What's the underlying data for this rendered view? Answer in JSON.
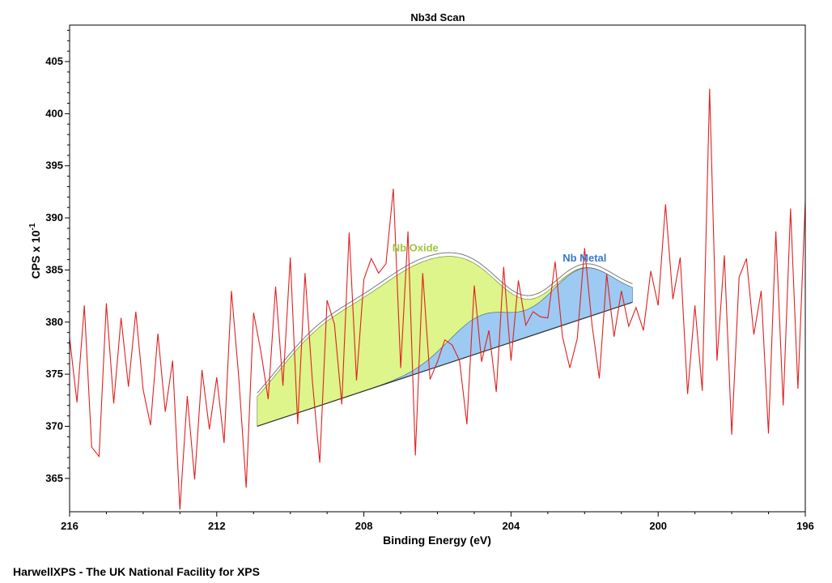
{
  "footer_text": "HarwellXPS - The UK National Facility for XPS",
  "colors": {
    "raw": "#e02020",
    "oxide_fill": "#ddf58a",
    "metal_fill": "#9ccaf2",
    "oxide_label": "#9cc63a",
    "metal_label": "#3a78c8",
    "envelope": "#7a7a7a",
    "background_line": "#303030"
  },
  "chart_data": {
    "type": "line",
    "title": "Nb3d Scan",
    "xlabel": "Binding Energy (eV)",
    "ylabel": "CPS x 10",
    "ylabel_superscript": "-1",
    "xlim": [
      216,
      196
    ],
    "x_reversed": true,
    "ylim": [
      361.8,
      408.5
    ],
    "xticks": [
      216,
      212,
      208,
      204,
      200,
      196
    ],
    "yticks": [
      365,
      370,
      375,
      380,
      385,
      390,
      395,
      400,
      405
    ],
    "grid": false,
    "legend": "none",
    "annotations": [
      {
        "text": "Nb Oxide",
        "x": 206.6,
        "y": 386.8,
        "color": "#9cc63a"
      },
      {
        "text": "Nb Metal",
        "x": 202.0,
        "y": 385.8,
        "color": "#3a78c8"
      }
    ],
    "components": {
      "x_range": [
        210.9,
        200.7
      ],
      "background": {
        "x0": 210.9,
        "y0": 370.0,
        "x1": 200.7,
        "y1": 381.9
      },
      "peaks": [
        {
          "name": "Nb Oxide",
          "center": 209.15,
          "height": 6.5,
          "fwhm": 1.35
        },
        {
          "name": "Nb Oxide",
          "center": 206.4,
          "height": 9.0,
          "fwhm": 1.35
        },
        {
          "name": "Nb Metal",
          "center": 204.8,
          "height": 3.5,
          "fwhm": 0.9
        },
        {
          "name": "Nb Metal",
          "center": 202.1,
          "height": 4.8,
          "fwhm": 0.9
        }
      ]
    },
    "series": [
      {
        "x": [
          216.0,
          215.8,
          215.6,
          215.4,
          215.2,
          215.0,
          214.8,
          214.6,
          214.4,
          214.2,
          214.0,
          213.8,
          213.6,
          213.4,
          213.2,
          213.0,
          212.8,
          212.6,
          212.4,
          212.2,
          212.0,
          211.8,
          211.6,
          211.4,
          211.2,
          211.0,
          210.8,
          210.6,
          210.4,
          210.2,
          210.0,
          209.8,
          209.6,
          209.4,
          209.2,
          209.0,
          208.8,
          208.6,
          208.4,
          208.2,
          208.0,
          207.8,
          207.6,
          207.4,
          207.2,
          207.0,
          206.8,
          206.6,
          206.4,
          206.2,
          206.0,
          205.8,
          205.6,
          205.4,
          205.2,
          205.0,
          204.8,
          204.6,
          204.4,
          204.2,
          204.0,
          203.8,
          203.6,
          203.4,
          203.2,
          203.0,
          202.8,
          202.6,
          202.4,
          202.2,
          202.0,
          201.8,
          201.6,
          201.4,
          201.2,
          201.0,
          200.8,
          200.6,
          200.4,
          200.2,
          200.0,
          199.8,
          199.6,
          199.4,
          199.2,
          199.0,
          198.8,
          198.6,
          198.4,
          198.2,
          198.0,
          197.8,
          197.6,
          197.4,
          197.2,
          197.0,
          196.8,
          196.6,
          196.4,
          196.2,
          196.0
        ],
        "y": [
          378.5,
          372.3,
          381.6,
          368.0,
          367.1,
          381.8,
          372.2,
          380.4,
          373.8,
          381.0,
          373.5,
          370.1,
          378.9,
          371.4,
          376.3,
          362.0,
          372.9,
          364.9,
          375.4,
          369.7,
          374.7,
          368.4,
          383.0,
          374.6,
          364.1,
          380.9,
          377.2,
          372.6,
          383.4,
          373.9,
          386.2,
          370.2,
          384.7,
          374.3,
          366.5,
          382.1,
          379.8,
          372.1,
          388.6,
          374.4,
          384.1,
          386.1,
          384.7,
          385.6,
          392.8,
          375.6,
          388.7,
          367.2,
          384.7,
          374.5,
          376.2,
          378.3,
          377.8,
          376.3,
          370.2,
          383.5,
          376.2,
          379.2,
          373.3,
          385.3,
          376.3,
          384.0,
          379.7,
          381.0,
          380.5,
          380.4,
          385.8,
          378.6,
          375.6,
          378.4,
          387.1,
          379.8,
          374.6,
          384.6,
          378.6,
          383.0,
          379.6,
          381.4,
          379.2,
          384.9,
          381.6,
          391.3,
          382.2,
          386.2,
          373.1,
          381.6,
          373.4,
          402.4,
          376.3,
          386.4,
          369.2,
          384.3,
          386.1,
          378.8,
          383.0,
          369.3,
          388.7,
          372.0,
          390.9,
          373.6,
          391.6
        ]
      }
    ]
  }
}
